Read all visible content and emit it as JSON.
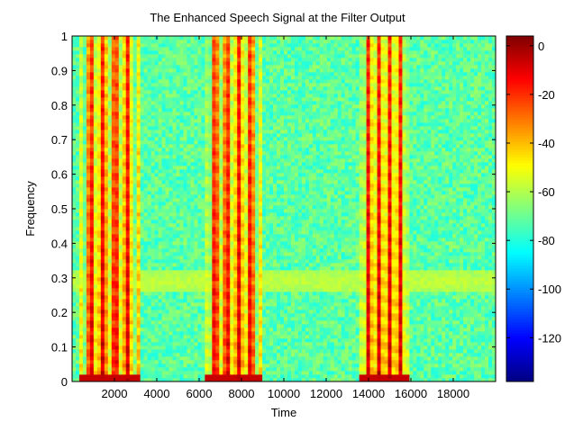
{
  "chart_data": {
    "type": "heatmap",
    "title": "The Enhanced Speech Signal at the Filter Output",
    "xlabel": "Time",
    "ylabel": "Frequency",
    "xlim": [
      0,
      20000
    ],
    "ylim": [
      0,
      1
    ],
    "x_ticks": [
      2000,
      4000,
      6000,
      8000,
      10000,
      12000,
      14000,
      16000,
      18000
    ],
    "x_tick_labels": [
      "2000",
      "4000",
      "6000",
      "8000",
      "10000",
      "12000",
      "14000",
      "16000",
      "18000"
    ],
    "y_ticks": [
      0,
      0.1,
      0.2,
      0.3,
      0.4,
      0.5,
      0.6,
      0.7,
      0.8,
      0.9,
      1
    ],
    "y_tick_labels": [
      "0",
      "0.1",
      "0.2",
      "0.3",
      "0.4",
      "0.5",
      "0.6",
      "0.7",
      "0.8",
      "0.9",
      "1"
    ],
    "colorbar": {
      "colormap": "jet",
      "range": [
        -138,
        4
      ],
      "ticks": [
        0,
        -20,
        -40,
        -60,
        -80,
        -100,
        -120
      ],
      "tick_labels": [
        "0",
        "-20",
        "-40",
        "-60",
        "-80",
        "-100",
        "-120"
      ]
    },
    "background_level_db": -72,
    "noise_band": {
      "frequency": 0.29,
      "level_db": -58
    },
    "speech_segments": [
      {
        "x_start": 300,
        "x_end": 3200,
        "peak_db": -2
      },
      {
        "x_start": 6200,
        "x_end": 9000,
        "peak_db": -2
      },
      {
        "x_start": 13500,
        "x_end": 16000,
        "peak_db": -2
      }
    ],
    "grid": false,
    "legend": "none"
  }
}
